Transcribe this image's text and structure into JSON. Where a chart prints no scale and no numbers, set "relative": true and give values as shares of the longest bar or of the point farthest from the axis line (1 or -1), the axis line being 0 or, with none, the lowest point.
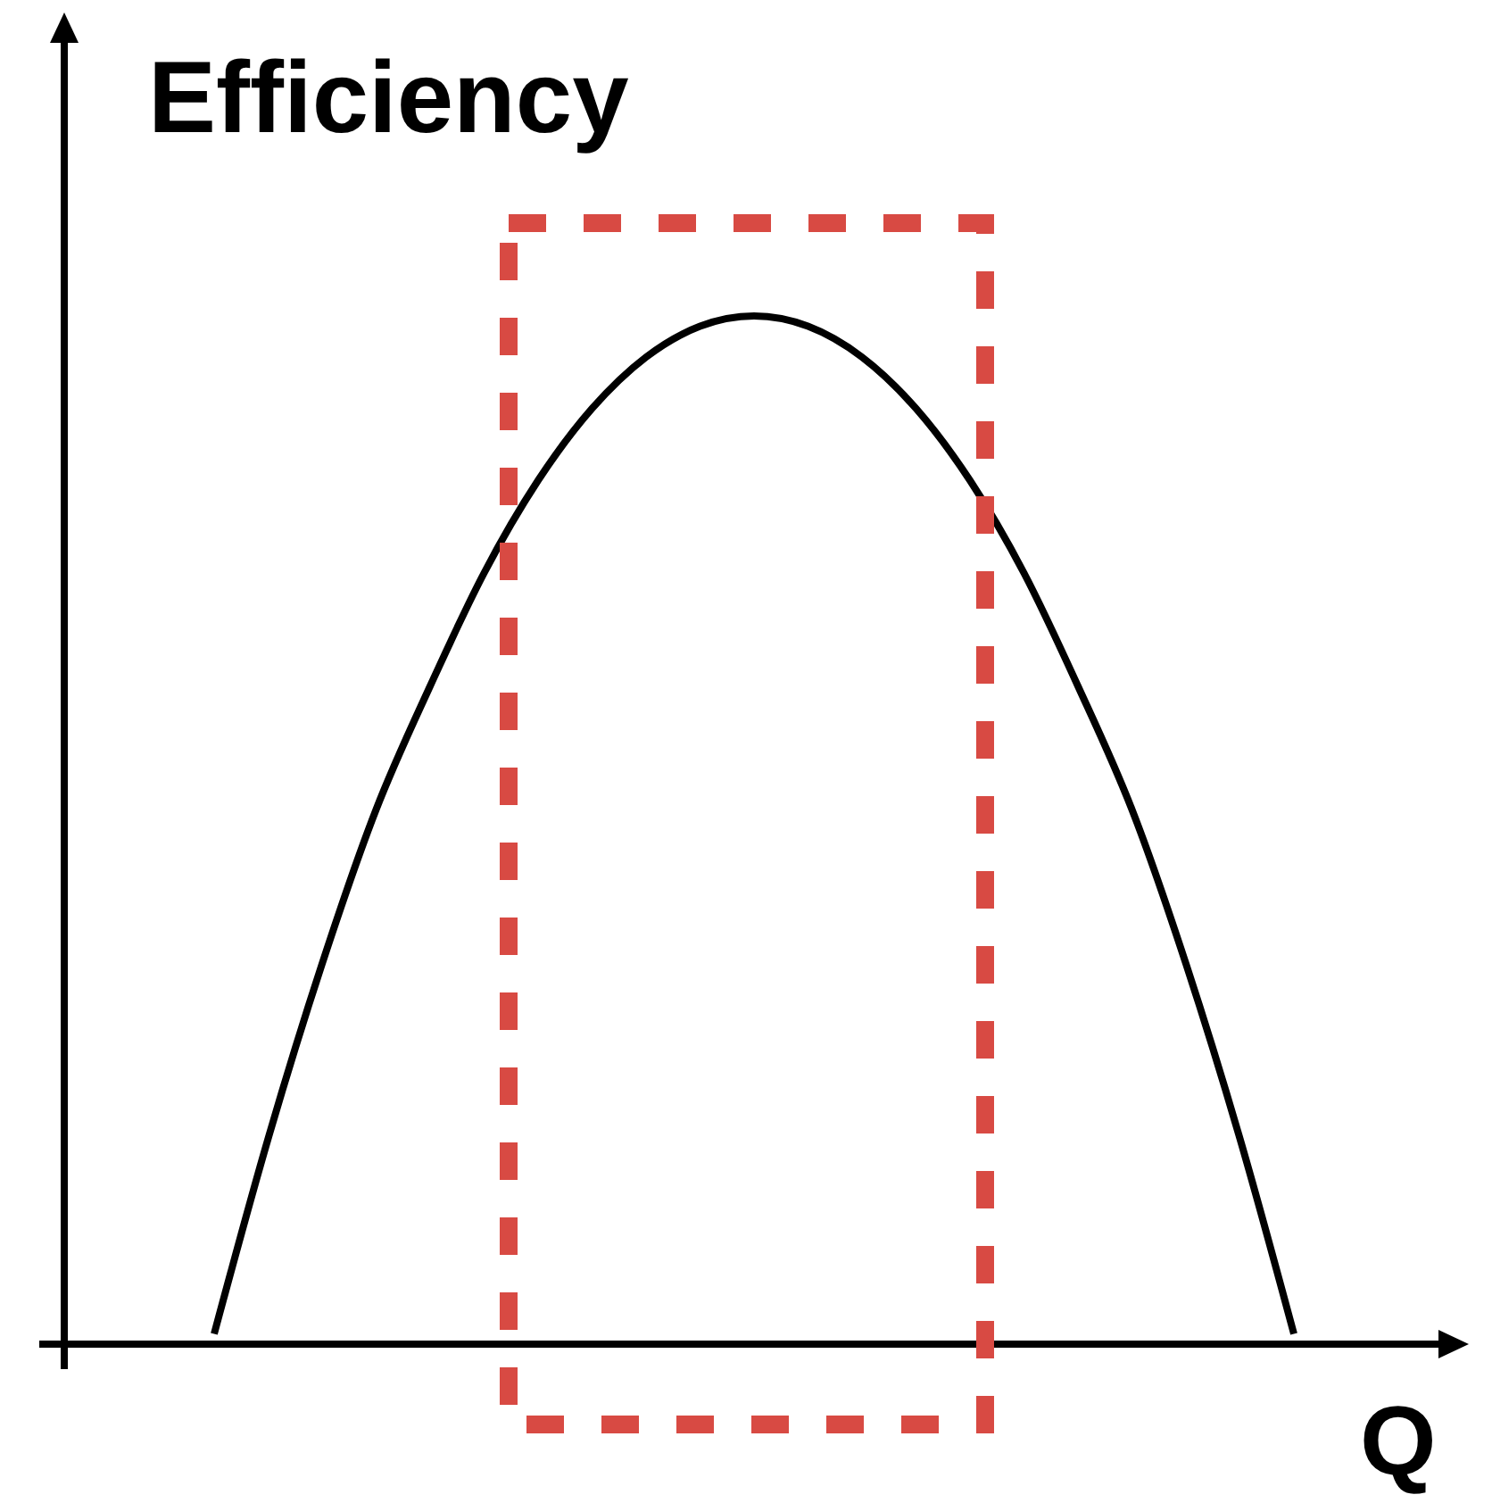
{
  "chart_data": {
    "type": "line",
    "relative": true,
    "xlabel": "Q",
    "ylabel": "Efficiency",
    "categories": [
      null,
      null,
      null,
      null,
      null,
      null,
      null,
      null,
      null,
      null,
      null,
      null,
      null,
      null,
      null,
      null,
      null,
      null,
      null,
      null,
      null
    ],
    "series": [
      {
        "color": "#000000",
        "values": [
          0.01,
          0.2,
          0.37,
          0.52,
          0.64,
          0.75,
          0.84,
          0.91,
          0.96,
          0.99,
          1.0,
          0.99,
          0.96,
          0.91,
          0.84,
          0.75,
          0.64,
          0.52,
          0.37,
          0.2,
          0.01
        ]
      }
    ]
  }
}
